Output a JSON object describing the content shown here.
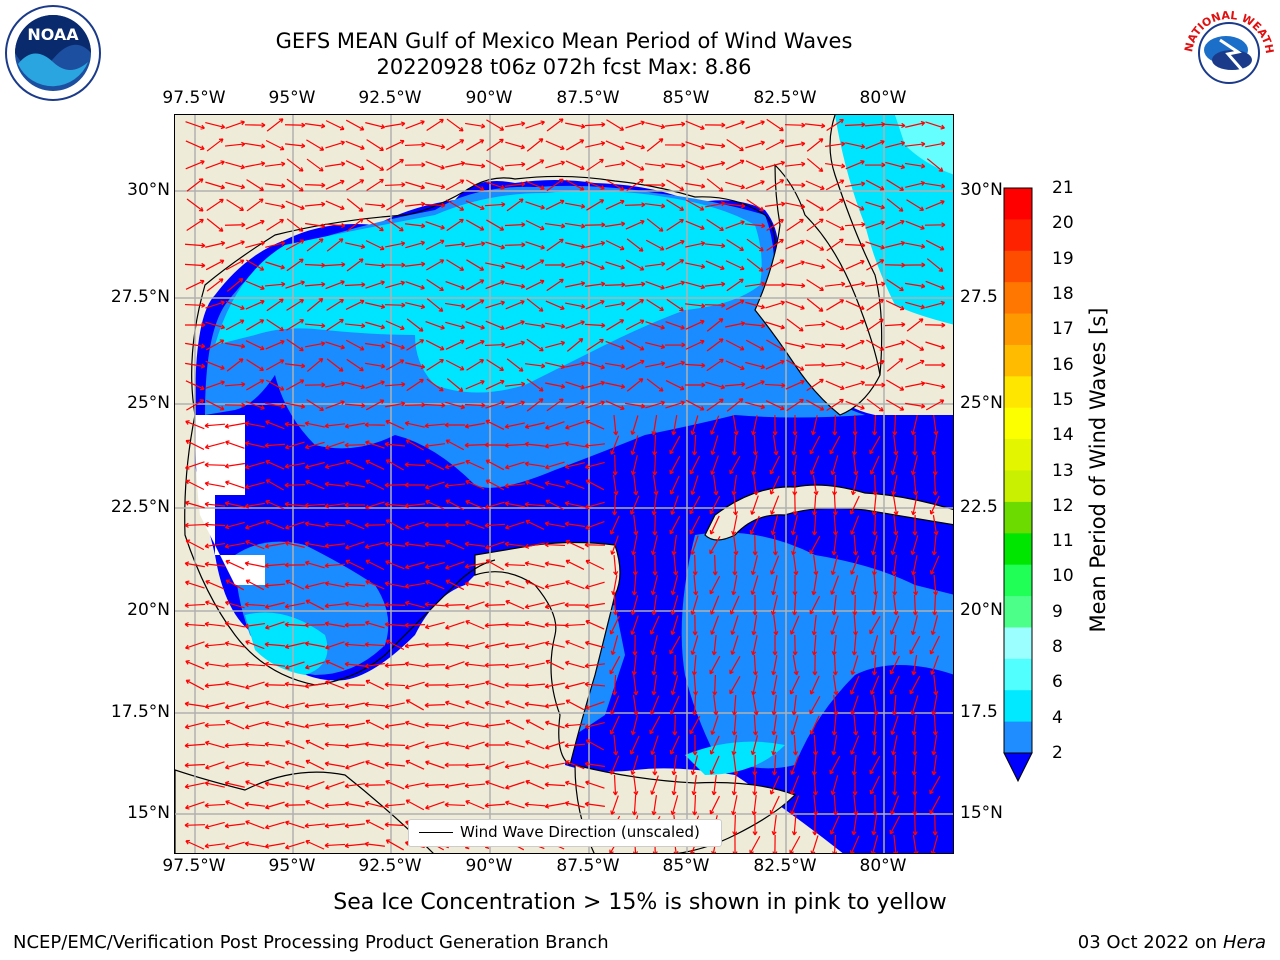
{
  "title": {
    "line1": "GEFS MEAN Gulf of Mexico Mean Period of Wind Waves",
    "line2": "20220928 t06z 072h fcst   Max: 8.86"
  },
  "logos": {
    "left_text": "NOAA",
    "right_text": "NATIONAL WEATHER SERVICE"
  },
  "map": {
    "lon_ticks": [
      "97.5°W",
      "95°W",
      "92.5°W",
      "90°W",
      "87.5°W",
      "85°W",
      "82.5°W",
      "80°W"
    ],
    "lat_ticks_left": [
      "30°N",
      "27.5°N",
      "25°N",
      "22.5°N",
      "20°N",
      "17.5°N",
      "15°N"
    ],
    "lat_ticks_right": [
      "30°N",
      "27.5",
      "25°N",
      "22.5",
      "20°N",
      "17.5",
      "15°N"
    ],
    "legend_text": "Wind Wave Direction (unscaled)",
    "colors": {
      "land": "#eeecd9",
      "water_low": "#0000ff",
      "water_2_4": "#1a8cff",
      "water_4_6": "#00e5ff",
      "water_6_8": "#66ffff",
      "arrow": "#ff0000"
    }
  },
  "colorbar": {
    "title": "Mean Period of Wind Waves [s]",
    "labels": [
      "21",
      "20",
      "19",
      "18",
      "17",
      "16",
      "15",
      "14",
      "13",
      "12",
      "11",
      "10",
      "9",
      "8",
      "6",
      "4",
      "2"
    ],
    "colors": [
      "#ff0000",
      "#ff2200",
      "#ff4d00",
      "#ff7700",
      "#ff9900",
      "#ffbb00",
      "#ffe600",
      "#fbff00",
      "#e4f500",
      "#c9f000",
      "#6cdc00",
      "#00e600",
      "#1fff55",
      "#4cff88",
      "#9cffff",
      "#52ffff",
      "#00e9ff",
      "#1f8dff"
    ]
  },
  "note": "Sea Ice Concentration > 15% is shown in pink to yellow",
  "footer": {
    "left": "NCEP/EMC/Verification Post Processing Product Generation Branch",
    "date": "03 Oct 2022 on ",
    "host": "Hera"
  }
}
